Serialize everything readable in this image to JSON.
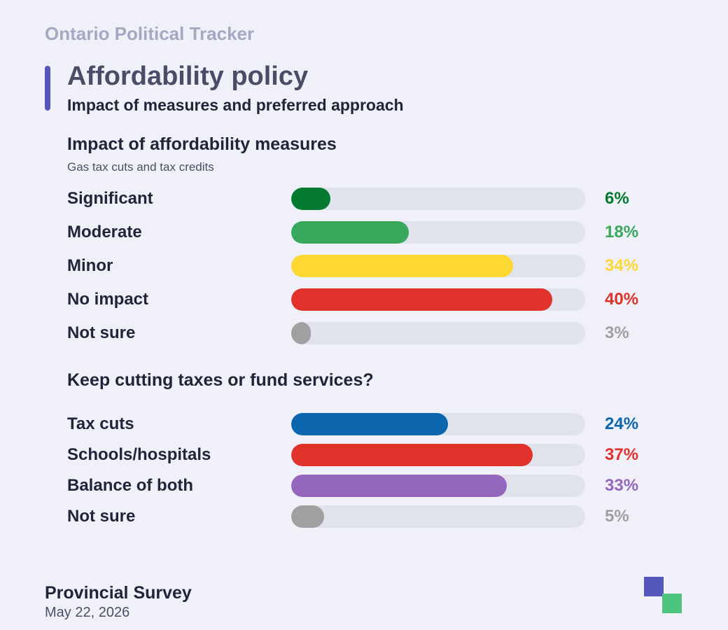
{
  "header": {
    "brand": "Ontario Political Tracker",
    "title": "Affordability policy",
    "subtitle": "Impact of measures and preferred approach",
    "accent_color": "#5558b8"
  },
  "chart_data": [
    {
      "type": "bar",
      "orientation": "horizontal",
      "title": "Impact of affordability measures",
      "subtitle": "Gas tax cuts and tax credits",
      "categories": [
        "Significant",
        "Moderate",
        "Minor",
        "No impact",
        "Not sure"
      ],
      "values": [
        6,
        18,
        34,
        40,
        3
      ],
      "labels": [
        "6%",
        "18%",
        "34%",
        "40%",
        "3%"
      ],
      "colors": [
        "#047a30",
        "#37a85c",
        "#fdd833",
        "#e0312b",
        "#a0a0a0"
      ],
      "xlim": [
        0,
        45
      ],
      "grid": false
    },
    {
      "type": "bar",
      "orientation": "horizontal",
      "title": "Keep cutting taxes or fund services?",
      "categories": [
        "Tax cuts",
        "Schools/hospitals",
        "Balance of both",
        "Not sure"
      ],
      "values": [
        24,
        37,
        33,
        5
      ],
      "labels": [
        "24%",
        "37%",
        "33%",
        "5%"
      ],
      "colors": [
        "#0c66ad",
        "#e0312b",
        "#9466bd",
        "#a0a0a0"
      ],
      "xlim": [
        0,
        45
      ],
      "grid": false
    }
  ],
  "footer": {
    "title": "Provincial Survey",
    "date": "May 22, 2026",
    "logo_colors": [
      "#5558b8",
      "#4cc47d"
    ]
  }
}
